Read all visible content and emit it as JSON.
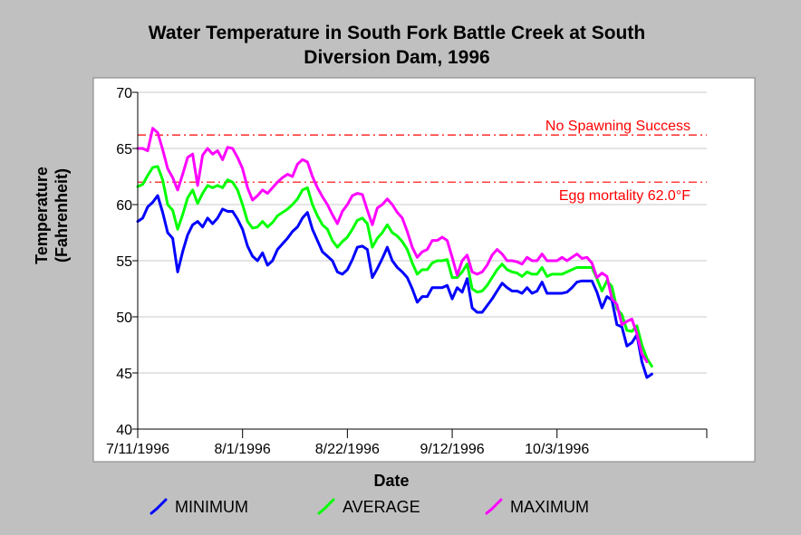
{
  "chart_data": {
    "type": "line",
    "title": "Water Temperature in South Fork Battle Creek at South Diversion Dam, 1996",
    "title_lines": [
      "Water Temperature in South Fork Battle Creek at South",
      "Diversion Dam, 1996"
    ],
    "xlabel": "Date",
    "ylabel_lines": [
      "Temperature",
      "(Fahrenheit)"
    ],
    "x_start": "7/11/1996",
    "x_ticks": [
      "7/11/1996",
      "8/1/1996",
      "8/22/1996",
      "9/12/1996",
      "10/3/1996"
    ],
    "xlim": [
      "7/11/1996",
      "11/2/1996"
    ],
    "ylim": [
      40,
      70
    ],
    "y_ticks": [
      "40",
      "45",
      "50",
      "55",
      "60",
      "65",
      "70"
    ],
    "grid": "horizontal",
    "legend_placement": "bottom",
    "annotations": [
      {
        "text": "No Spawning Success",
        "y": 66.2,
        "color": "#ff0000"
      },
      {
        "text": "Egg mortality 62.0°F",
        "y": 62.0,
        "color": "#ff0000"
      }
    ],
    "series": [
      {
        "name": "MINIMUM",
        "color": "#0000ff",
        "values": [
          58.5,
          58.8,
          59.8,
          60.2,
          60.8,
          59.3,
          57.5,
          57.0,
          54.0,
          55.8,
          57.3,
          58.2,
          58.5,
          58.0,
          58.8,
          58.3,
          58.8,
          59.6,
          59.4,
          59.4,
          58.7,
          57.8,
          56.3,
          55.4,
          55.0,
          55.7,
          54.6,
          55.0,
          56.0,
          56.5,
          57.0,
          57.6,
          58.0,
          58.8,
          59.3,
          57.8,
          56.8,
          55.8,
          55.4,
          55.0,
          54.0,
          53.8,
          54.2,
          55.1,
          56.2,
          56.3,
          56.0,
          53.5,
          54.3,
          55.2,
          56.2,
          55.0,
          54.4,
          54.0,
          53.5,
          52.5,
          51.3,
          51.8,
          51.8,
          52.6,
          52.6,
          52.6,
          52.8,
          51.6,
          52.6,
          52.2,
          53.4,
          50.8,
          50.4,
          50.4,
          51.0,
          51.6,
          52.3,
          53.0,
          52.6,
          52.3,
          52.3,
          52.1,
          52.6,
          52.1,
          52.3,
          53.1,
          52.1,
          52.1,
          52.1,
          52.1,
          52.2,
          52.6,
          53.1,
          53.2,
          53.2,
          53.2,
          52.2,
          50.8,
          51.8,
          51.5,
          49.3,
          49.1,
          47.4,
          47.7,
          48.4,
          46.0,
          44.6,
          44.9
        ]
      },
      {
        "name": "AVERAGE",
        "color": "#00ff00",
        "values": [
          61.6,
          61.8,
          62.6,
          63.3,
          63.4,
          62.2,
          60.0,
          59.5,
          57.8,
          59.1,
          60.6,
          61.3,
          60.1,
          61.0,
          61.7,
          61.5,
          61.7,
          61.5,
          62.2,
          62.0,
          61.3,
          60.0,
          58.5,
          57.9,
          58.0,
          58.5,
          58.0,
          58.4,
          59.0,
          59.3,
          59.6,
          60.0,
          60.5,
          61.3,
          61.5,
          60.0,
          59.0,
          58.2,
          57.8,
          56.8,
          56.2,
          56.7,
          57.1,
          57.8,
          58.6,
          58.8,
          58.3,
          56.2,
          57.0,
          57.5,
          58.2,
          57.5,
          57.2,
          56.7,
          56.0,
          54.8,
          53.8,
          54.2,
          54.2,
          54.8,
          55.0,
          55.0,
          55.1,
          53.5,
          53.5,
          54.0,
          54.7,
          52.5,
          52.2,
          52.3,
          52.8,
          53.5,
          54.2,
          54.7,
          54.2,
          54.0,
          53.9,
          53.6,
          54.0,
          53.8,
          53.8,
          54.4,
          53.6,
          53.8,
          53.8,
          53.8,
          54.0,
          54.2,
          54.4,
          54.4,
          54.4,
          54.4,
          53.4,
          52.3,
          53.2,
          52.7,
          50.7,
          50.2,
          48.8,
          48.7,
          49.2,
          47.5,
          46.3,
          45.6
        ]
      },
      {
        "name": "MAXIMUM",
        "color": "#ff00ff",
        "values": [
          65.0,
          65.0,
          64.8,
          66.8,
          66.4,
          64.9,
          63.2,
          62.4,
          61.3,
          62.7,
          64.2,
          64.5,
          61.7,
          64.4,
          65.0,
          64.5,
          64.8,
          64.0,
          65.1,
          65.0,
          64.2,
          63.2,
          61.5,
          60.4,
          60.8,
          61.3,
          61.0,
          61.5,
          62.0,
          62.4,
          62.7,
          62.5,
          63.6,
          64.0,
          63.8,
          62.5,
          61.5,
          60.7,
          60.0,
          59.1,
          58.3,
          59.4,
          60.0,
          60.8,
          61.0,
          60.9,
          59.5,
          58.2,
          59.7,
          60.0,
          60.5,
          60.0,
          59.3,
          58.8,
          57.6,
          56.2,
          55.3,
          55.8,
          56.0,
          56.8,
          56.8,
          57.1,
          56.8,
          55.3,
          53.7,
          55.0,
          55.5,
          54.0,
          53.8,
          54.0,
          54.6,
          55.5,
          56.0,
          55.6,
          55.0,
          55.0,
          54.9,
          54.7,
          55.3,
          55.0,
          55.0,
          55.6,
          55.0,
          55.0,
          55.0,
          55.3,
          55.0,
          55.3,
          55.6,
          55.2,
          55.3,
          54.8,
          53.5,
          53.9,
          53.6,
          51.6,
          51.1,
          49.3,
          49.6,
          49.8,
          48.5,
          46.7,
          46.0
        ]
      }
    ]
  }
}
